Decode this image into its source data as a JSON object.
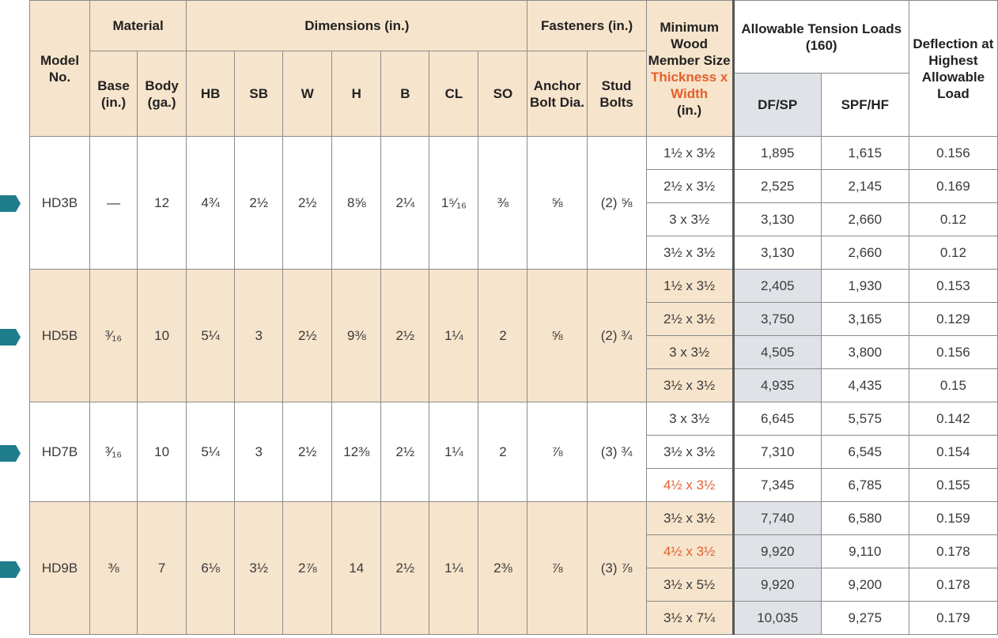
{
  "headers": {
    "model": "Model No.",
    "material": "Material",
    "base": "Base (in.)",
    "body": "Body (ga.)",
    "dimensions": "Dimensions (in.)",
    "dim_cols": [
      "HB",
      "SB",
      "W",
      "H",
      "B",
      "CL",
      "SO"
    ],
    "fasteners": "Fasteners (in.)",
    "anchor": "Anchor Bolt Dia.",
    "stud": "Stud Bolts",
    "min_wood_1": "Minimum Wood Member Size",
    "min_wood_2": "Thickness x Width",
    "min_wood_3": "(in.)",
    "allowable": "Allowable Tension Loads (160)",
    "dfsp": "DF/SP",
    "spfhf": "SPF/HF",
    "deflection": "Deflection at Highest Allowable Load"
  },
  "groups": [
    {
      "model": "HD3B",
      "base": "—",
      "body": "12",
      "dims": [
        "4¾",
        "2½",
        "2½",
        "8⅝",
        "2¼",
        "1⁵⁄₁₆",
        "⅜"
      ],
      "anchor": "⅝",
      "stud": "(2) ⅝",
      "rows": [
        {
          "size": "1½ x 3½",
          "df": "1,895",
          "spf": "1,615",
          "defl": "0.156",
          "orange": false
        },
        {
          "size": "2½ x 3½",
          "df": "2,525",
          "spf": "2,145",
          "defl": "0.169",
          "orange": false
        },
        {
          "size": "3 x 3½",
          "df": "3,130",
          "spf": "2,660",
          "defl": "0.12",
          "orange": false
        },
        {
          "size": "3½ x 3½",
          "df": "3,130",
          "spf": "2,660",
          "defl": "0.12",
          "orange": false
        }
      ]
    },
    {
      "model": "HD5B",
      "base": "³⁄₁₆",
      "body": "10",
      "dims": [
        "5¼",
        "3",
        "2½",
        "9⅜",
        "2½",
        "1¼",
        "2"
      ],
      "anchor": "⅝",
      "stud": "(2) ¾",
      "rows": [
        {
          "size": "1½ x 3½",
          "df": "2,405",
          "spf": "1,930",
          "defl": "0.153",
          "orange": false
        },
        {
          "size": "2½ x 3½",
          "df": "3,750",
          "spf": "3,165",
          "defl": "0.129",
          "orange": false
        },
        {
          "size": "3 x 3½",
          "df": "4,505",
          "spf": "3,800",
          "defl": "0.156",
          "orange": false
        },
        {
          "size": "3½ x 3½",
          "df": "4,935",
          "spf": "4,435",
          "defl": "0.15",
          "orange": false
        }
      ]
    },
    {
      "model": "HD7B",
      "base": "³⁄₁₆",
      "body": "10",
      "dims": [
        "5¼",
        "3",
        "2½",
        "12⅜",
        "2½",
        "1¼",
        "2"
      ],
      "anchor": "⅞",
      "stud": "(3) ¾",
      "rows": [
        {
          "size": "3 x 3½",
          "df": "6,645",
          "spf": "5,575",
          "defl": "0.142",
          "orange": false
        },
        {
          "size": "3½ x 3½",
          "df": "7,310",
          "spf": "6,545",
          "defl": "0.154",
          "orange": false
        },
        {
          "size": "4½ x 3½",
          "df": "7,345",
          "spf": "6,785",
          "defl": "0.155",
          "orange": true
        }
      ]
    },
    {
      "model": "HD9B",
      "base": "⅜",
      "body": "7",
      "dims": [
        "6⅛",
        "3½",
        "2⅞",
        "14",
        "2½",
        "1¼",
        "2⅜"
      ],
      "anchor": "⅞",
      "stud": "(3) ⅞",
      "rows": [
        {
          "size": "3½ x 3½",
          "df": "7,740",
          "spf": "6,580",
          "defl": "0.159",
          "orange": false
        },
        {
          "size": "4½ x 3½",
          "df": "9,920",
          "spf": "9,110",
          "defl": "0.178",
          "orange": true
        },
        {
          "size": "3½ x 5½",
          "df": "9,920",
          "spf": "9,200",
          "defl": "0.178",
          "orange": false
        },
        {
          "size": "3½ x 7¼",
          "df": "10,035",
          "spf": "9,275",
          "defl": "0.179",
          "orange": false
        }
      ]
    }
  ],
  "colors": {
    "tan": "#f7e4cc",
    "highlight": "#dfe3e8",
    "orange": "#e45f2b",
    "tab": "#1f7d8c"
  }
}
